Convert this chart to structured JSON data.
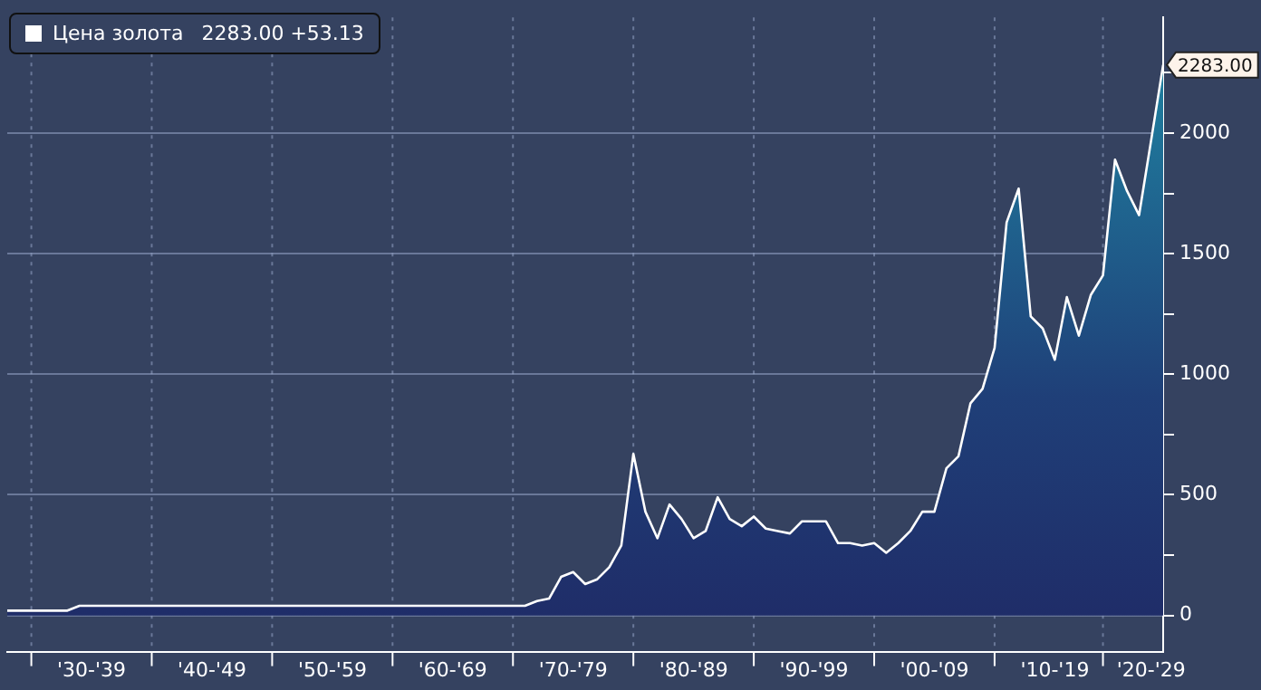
{
  "chart_data": {
    "type": "area",
    "categories": [
      null,
      null,
      null,
      null,
      null,
      null,
      null,
      "'30-'39",
      null,
      null,
      null,
      null,
      null,
      null,
      null,
      null,
      null,
      "'40-'49",
      null,
      null,
      null,
      null,
      null,
      null,
      null,
      null,
      null,
      "'50-'59",
      null,
      null,
      null,
      null,
      null,
      null,
      null,
      null,
      null,
      "'60-'69",
      null,
      null,
      null,
      null,
      null,
      null,
      null,
      null,
      null,
      "'70-'79",
      null,
      null,
      null,
      null,
      null,
      null,
      null,
      null,
      null,
      "'80-'89",
      null,
      null,
      null,
      null,
      null,
      null,
      null,
      null,
      null,
      "'90-'99",
      null,
      null,
      null,
      null,
      null,
      null,
      null,
      null,
      null,
      "'00-'09",
      null,
      null,
      null,
      null,
      null,
      null,
      null,
      null,
      null,
      "'10-'19",
      null,
      null,
      null,
      null,
      null,
      null,
      null,
      "'20-'29",
      null
    ],
    "series": [
      {
        "name": "Цена золота",
        "color": "#ffffff",
        "values": [
          20,
          20,
          20,
          20,
          20,
          20,
          40,
          40,
          40,
          40,
          40,
          40,
          40,
          40,
          40,
          40,
          40,
          40,
          40,
          40,
          40,
          40,
          40,
          40,
          40,
          40,
          40,
          40,
          40,
          40,
          40,
          40,
          40,
          40,
          40,
          40,
          40,
          40,
          40,
          40,
          40,
          40,
          40,
          40,
          60,
          70,
          160,
          180,
          130,
          150,
          200,
          290,
          670,
          430,
          320,
          460,
          400,
          320,
          350,
          490,
          400,
          370,
          410,
          360,
          350,
          340,
          390,
          390,
          390,
          300,
          300,
          290,
          300,
          260,
          300,
          350,
          430,
          430,
          610,
          660,
          880,
          940,
          1110,
          1630,
          1770,
          1240,
          1190,
          1060,
          1320,
          1160,
          1330,
          1410,
          1890,
          1760,
          1660,
          1970,
          2283
        ]
      }
    ],
    "ylim": [
      -150,
      2480
    ],
    "yticks": [
      0,
      {
        "value": 250,
        "label": null
      },
      500,
      {
        "value": 750,
        "label": null
      },
      1000,
      {
        "value": 1250,
        "label": null
      },
      1500,
      {
        "value": 1750,
        "label": null
      },
      2000,
      {
        "value": 2250,
        "label": null
      }
    ],
    "grid": true,
    "legend": "top left",
    "annotations": [
      "2283.00 +53.13",
      "2283.00"
    ]
  }
}
